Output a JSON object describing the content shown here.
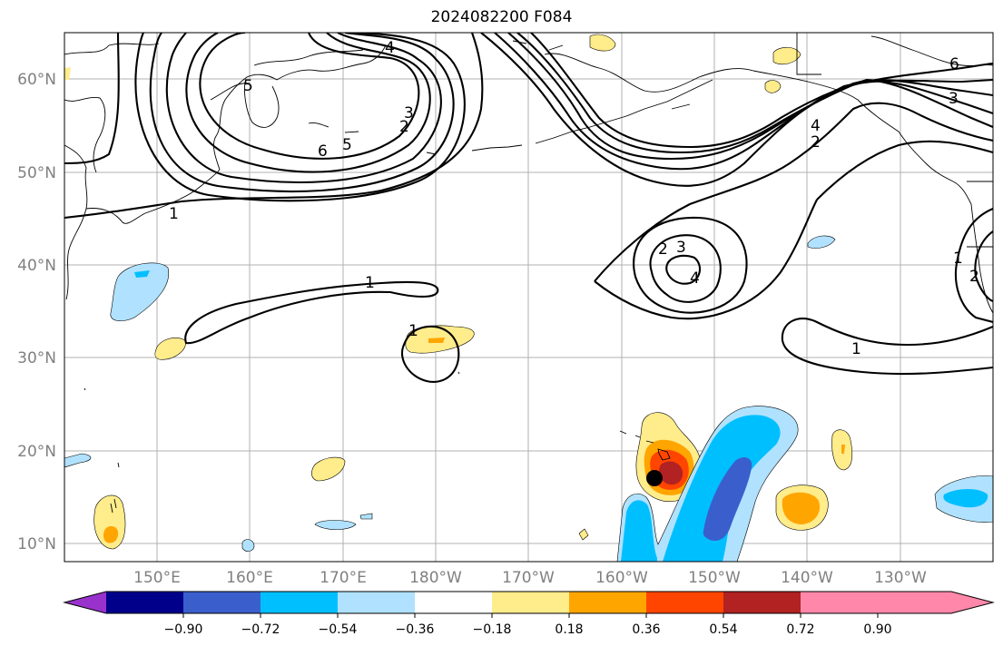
{
  "title": "2024082200 F084",
  "lat_labels": [
    "60°N",
    "50°N",
    "40°N",
    "30°N",
    "20°N",
    "10°N"
  ],
  "lon_labels": [
    "150°E",
    "160°E",
    "170°E",
    "180°W",
    "170°W",
    "160°W",
    "150°W",
    "140°W",
    "130°W"
  ],
  "colorbar": {
    "tick_labels": [
      "−0.90",
      "−0.72",
      "−0.54",
      "−0.36",
      "−0.18",
      "0.18",
      "0.36",
      "0.54",
      "0.72",
      "0.90"
    ],
    "colors": [
      "#9932cc",
      "#00008b",
      "#3a5fcd",
      "#00bfff",
      "#b0e2ff",
      "#ffffff",
      "#ffec8b",
      "#ffa500",
      "#ff4500",
      "#b22222",
      "#ff88aa"
    ]
  },
  "contour_labels": [
    "1",
    "1",
    "1",
    "1",
    "1",
    "2",
    "2",
    "2",
    "2",
    "3",
    "3",
    "3",
    "4",
    "4",
    "4",
    "5",
    "5",
    "6",
    "6"
  ],
  "markers": [
    {
      "name": "storm-center",
      "color": "#000000"
    }
  ]
}
